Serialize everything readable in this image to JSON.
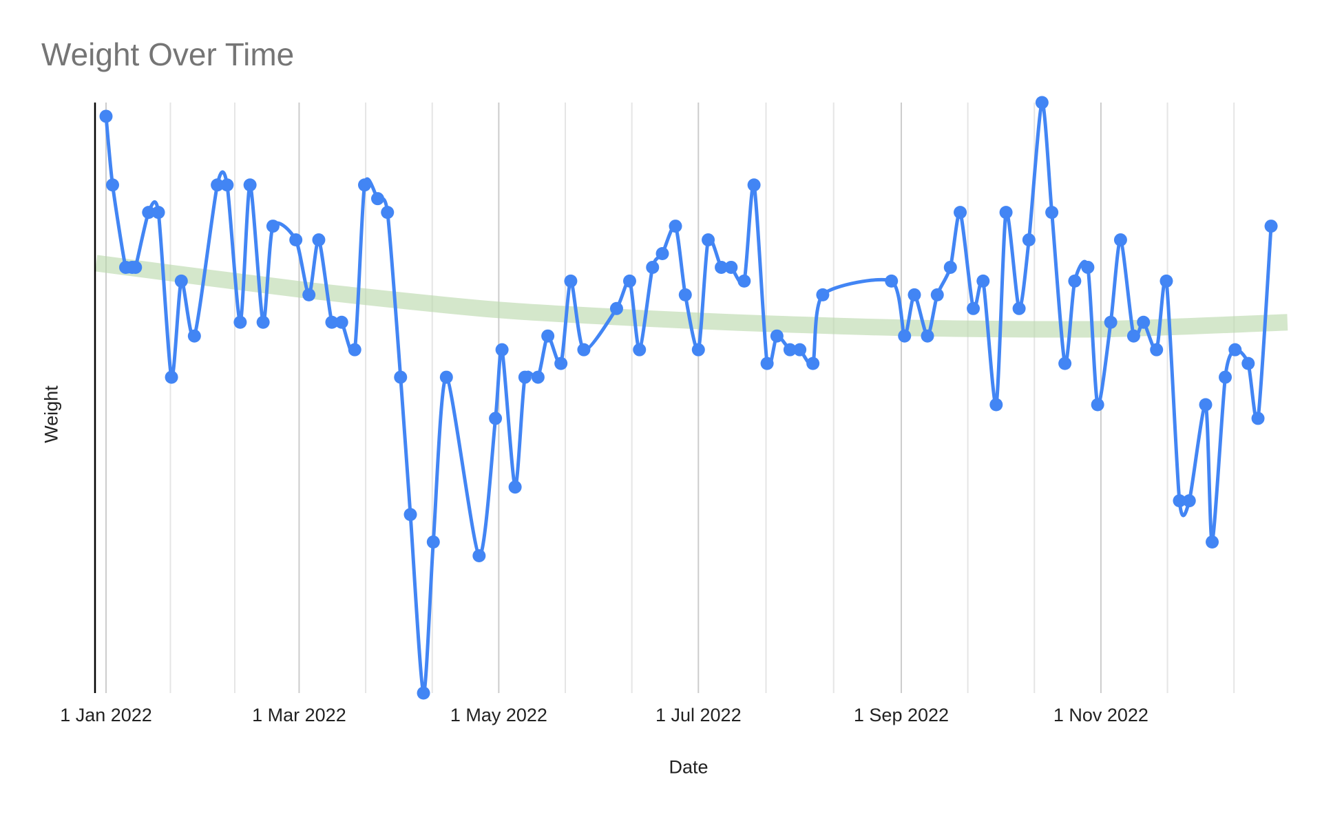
{
  "chart_data": {
    "type": "line",
    "title": "Weight Over Time",
    "xlabel": "Date",
    "ylabel": "Weight",
    "y_tick_labels_shown": false,
    "y_units_note_hidden": true,
    "ylim": [
      0,
      43
    ],
    "xlim": [
      "2021-12-29",
      "2022-12-28"
    ],
    "grid": "vertical",
    "legend": "none",
    "colors": {
      "series": "#4285f4",
      "trendline": "#b7d7a8",
      "major_grid": "#cccccc",
      "minor_grid": "#e5e5e5",
      "axis": "#000000",
      "title": "#757575"
    },
    "x_ticks": [
      {
        "date": "2022-01-01",
        "label": "1 Jan 2022"
      },
      {
        "date": "2022-03-01",
        "label": "1 Mar 2022"
      },
      {
        "date": "2022-05-01",
        "label": "1 May 2022"
      },
      {
        "date": "2022-07-01",
        "label": "1 Jul 2022"
      },
      {
        "date": "2022-09-01",
        "label": "1 Sep 2022"
      },
      {
        "date": "2022-11-01",
        "label": "1 Nov 2022"
      }
    ],
    "series": [
      {
        "points": [
          [
            "2022-01-01",
            42
          ],
          [
            "2022-01-03",
            37
          ],
          [
            "2022-01-07",
            31
          ],
          [
            "2022-01-09",
            31
          ],
          [
            "2022-01-10",
            31
          ],
          [
            "2022-01-14",
            35
          ],
          [
            "2022-01-17",
            35
          ],
          [
            "2022-01-21",
            23
          ],
          [
            "2022-01-24",
            30
          ],
          [
            "2022-01-28",
            26
          ],
          [
            "2022-02-04",
            37
          ],
          [
            "2022-02-07",
            37
          ],
          [
            "2022-02-11",
            27
          ],
          [
            "2022-02-14",
            37
          ],
          [
            "2022-02-18",
            27
          ],
          [
            "2022-02-21",
            34
          ],
          [
            "2022-02-28",
            33
          ],
          [
            "2022-03-04",
            29
          ],
          [
            "2022-03-07",
            33
          ],
          [
            "2022-03-11",
            27
          ],
          [
            "2022-03-14",
            27
          ],
          [
            "2022-03-18",
            25
          ],
          [
            "2022-03-21",
            37
          ],
          [
            "2022-03-25",
            36
          ],
          [
            "2022-03-28",
            35
          ],
          [
            "2022-04-01",
            23
          ],
          [
            "2022-04-04",
            13
          ],
          [
            "2022-04-08",
            0
          ],
          [
            "2022-04-11",
            11
          ],
          [
            "2022-04-15",
            23
          ],
          [
            "2022-04-25",
            10
          ],
          [
            "2022-04-30",
            20
          ],
          [
            "2022-05-02",
            25
          ],
          [
            "2022-05-06",
            15
          ],
          [
            "2022-05-09",
            23
          ],
          [
            "2022-05-13",
            23
          ],
          [
            "2022-05-16",
            26
          ],
          [
            "2022-05-20",
            24
          ],
          [
            "2022-05-23",
            30
          ],
          [
            "2022-05-27",
            25
          ],
          [
            "2022-06-06",
            28
          ],
          [
            "2022-06-10",
            30
          ],
          [
            "2022-06-13",
            25
          ],
          [
            "2022-06-17",
            31
          ],
          [
            "2022-06-20",
            32
          ],
          [
            "2022-06-24",
            34
          ],
          [
            "2022-06-27",
            29
          ],
          [
            "2022-07-01",
            25
          ],
          [
            "2022-07-04",
            33
          ],
          [
            "2022-07-08",
            31
          ],
          [
            "2022-07-11",
            31
          ],
          [
            "2022-07-15",
            30
          ],
          [
            "2022-07-18",
            37
          ],
          [
            "2022-07-22",
            24
          ],
          [
            "2022-07-25",
            26
          ],
          [
            "2022-07-29",
            25
          ],
          [
            "2022-08-01",
            25
          ],
          [
            "2022-08-05",
            24
          ],
          [
            "2022-08-08",
            29
          ],
          [
            "2022-08-29",
            30
          ],
          [
            "2022-09-02",
            26
          ],
          [
            "2022-09-05",
            29
          ],
          [
            "2022-09-09",
            26
          ],
          [
            "2022-09-12",
            29
          ],
          [
            "2022-09-16",
            31
          ],
          [
            "2022-09-19",
            35
          ],
          [
            "2022-09-23",
            28
          ],
          [
            "2022-09-26",
            30
          ],
          [
            "2022-09-30",
            21
          ],
          [
            "2022-10-03",
            35
          ],
          [
            "2022-10-07",
            28
          ],
          [
            "2022-10-10",
            33
          ],
          [
            "2022-10-14",
            43
          ],
          [
            "2022-10-17",
            35
          ],
          [
            "2022-10-21",
            24
          ],
          [
            "2022-10-24",
            30
          ],
          [
            "2022-10-28",
            31
          ],
          [
            "2022-10-31",
            21
          ],
          [
            "2022-11-04",
            27
          ],
          [
            "2022-11-07",
            33
          ],
          [
            "2022-11-11",
            26
          ],
          [
            "2022-11-14",
            27
          ],
          [
            "2022-11-18",
            25
          ],
          [
            "2022-11-21",
            30
          ],
          [
            "2022-11-25",
            14
          ],
          [
            "2022-11-28",
            14
          ],
          [
            "2022-12-03",
            21
          ],
          [
            "2022-12-05",
            11
          ],
          [
            "2022-12-09",
            23
          ],
          [
            "2022-12-12",
            25
          ],
          [
            "2022-12-16",
            24
          ],
          [
            "2022-12-19",
            20
          ],
          [
            "2022-12-23",
            34
          ]
        ]
      }
    ],
    "trendline": {
      "type": "polynomial",
      "points": [
        [
          "2021-12-29",
          31.3
        ],
        [
          "2022-03-01",
          29.4
        ],
        [
          "2022-05-01",
          27.9
        ],
        [
          "2022-07-01",
          27.1
        ],
        [
          "2022-09-01",
          26.6
        ],
        [
          "2022-11-01",
          26.5
        ],
        [
          "2022-12-28",
          27.0
        ]
      ]
    }
  }
}
